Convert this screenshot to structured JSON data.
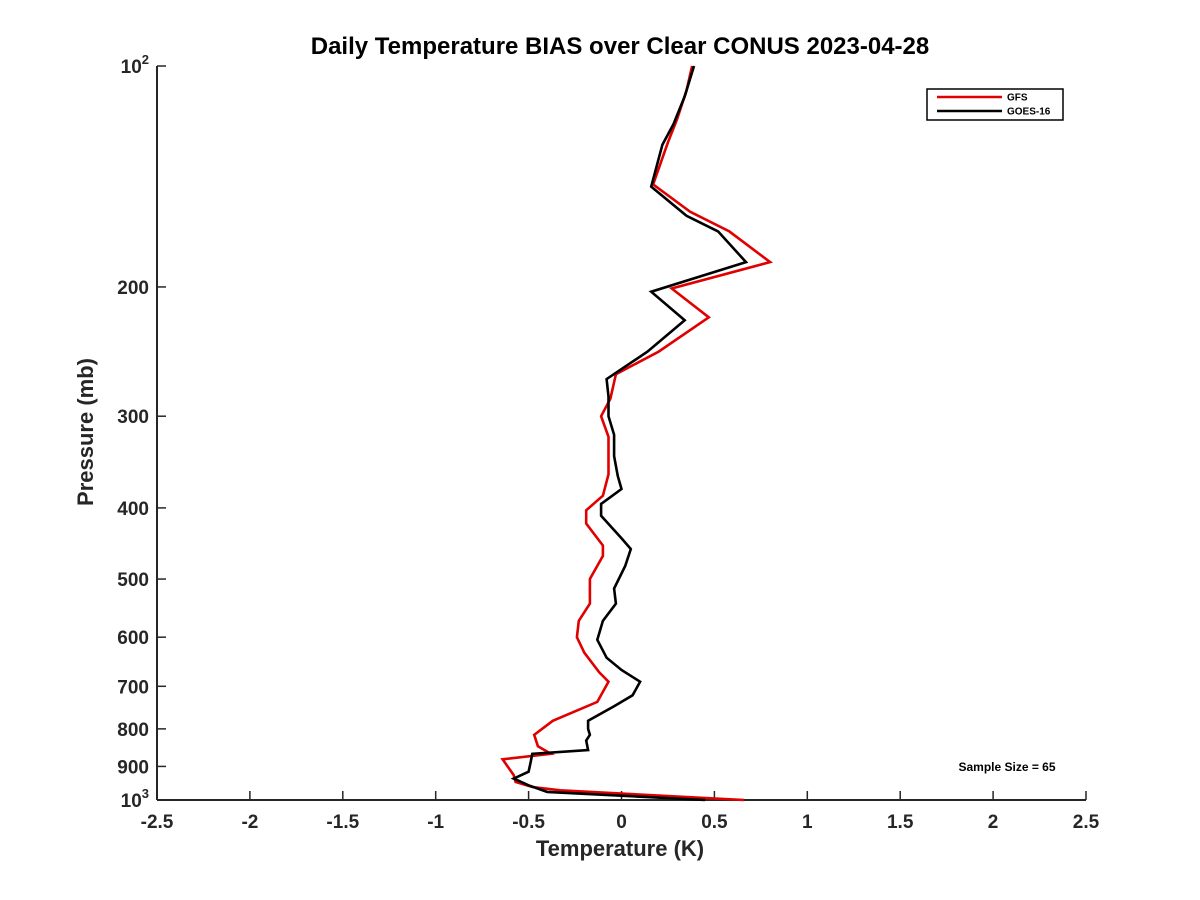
{
  "chart_data": {
    "type": "line",
    "title": "Daily Temperature BIAS over Clear CONUS 2023-04-28",
    "xlabel": "Temperature (K)",
    "ylabel": "Pressure (mb)",
    "xlim": [
      -2.5,
      2.5
    ],
    "ylim": [
      100,
      1000
    ],
    "y_scale": "log",
    "y_reversed": true,
    "grid": false,
    "legend_position": "top-right",
    "x_ticks": [
      "-2.5",
      "-2",
      "-1.5",
      "-1",
      "-0.5",
      "0",
      "0.5",
      "1",
      "1.5",
      "2",
      "2.5"
    ],
    "x_tick_values": [
      -2.5,
      -2,
      -1.5,
      -1,
      -0.5,
      0,
      0.5,
      1,
      1.5,
      2,
      2.5
    ],
    "y_ticks": [
      {
        "value": 100,
        "base": "10",
        "exp": "2"
      },
      {
        "value": 200,
        "label": "200"
      },
      {
        "value": 300,
        "label": "300"
      },
      {
        "value": 400,
        "label": "400"
      },
      {
        "value": 500,
        "label": "500"
      },
      {
        "value": 600,
        "label": "600"
      },
      {
        "value": 700,
        "label": "700"
      },
      {
        "value": 800,
        "label": "800"
      },
      {
        "value": 900,
        "label": "900"
      },
      {
        "value": 1000,
        "base": "10",
        "exp": "3"
      }
    ],
    "annotation": "Sample Size = 65",
    "series": [
      {
        "name": "GFS",
        "color": "#e00000",
        "points": [
          [
            0.38,
            100
          ],
          [
            0.35,
            108
          ],
          [
            0.3,
            118
          ],
          [
            0.25,
            127
          ],
          [
            0.17,
            145
          ],
          [
            0.37,
            158
          ],
          [
            0.58,
            168
          ],
          [
            0.8,
            185
          ],
          [
            0.27,
            201
          ],
          [
            0.47,
            220
          ],
          [
            0.2,
            245
          ],
          [
            -0.03,
            263
          ],
          [
            -0.06,
            284
          ],
          [
            -0.11,
            300
          ],
          [
            -0.07,
            320
          ],
          [
            -0.07,
            340
          ],
          [
            -0.07,
            360
          ],
          [
            -0.1,
            385
          ],
          [
            -0.19,
            403
          ],
          [
            -0.19,
            420
          ],
          [
            -0.1,
            450
          ],
          [
            -0.1,
            465
          ],
          [
            -0.17,
            500
          ],
          [
            -0.17,
            540
          ],
          [
            -0.23,
            570
          ],
          [
            -0.24,
            600
          ],
          [
            -0.2,
            630
          ],
          [
            -0.12,
            670
          ],
          [
            -0.07,
            690
          ],
          [
            -0.13,
            735
          ],
          [
            -0.37,
            780
          ],
          [
            -0.47,
            815
          ],
          [
            -0.45,
            845
          ],
          [
            -0.38,
            865
          ],
          [
            -0.64,
            880
          ],
          [
            -0.58,
            925
          ],
          [
            -0.57,
            945
          ],
          [
            -0.48,
            960
          ],
          [
            -0.33,
            970
          ],
          [
            0.0,
            980
          ],
          [
            0.66,
            1000
          ]
        ]
      },
      {
        "name": "GOES-16",
        "color": "#000000",
        "points": [
          [
            0.39,
            100
          ],
          [
            0.34,
            110
          ],
          [
            0.28,
            120
          ],
          [
            0.22,
            128
          ],
          [
            0.16,
            146
          ],
          [
            0.35,
            160
          ],
          [
            0.52,
            168
          ],
          [
            0.67,
            185
          ],
          [
            0.16,
            203
          ],
          [
            0.34,
            222
          ],
          [
            0.14,
            245
          ],
          [
            -0.08,
            267
          ],
          [
            -0.07,
            282
          ],
          [
            -0.07,
            300
          ],
          [
            -0.04,
            318
          ],
          [
            -0.04,
            340
          ],
          [
            -0.02,
            362
          ],
          [
            0.0,
            377
          ],
          [
            -0.11,
            395
          ],
          [
            -0.11,
            410
          ],
          [
            0.0,
            440
          ],
          [
            0.05,
            455
          ],
          [
            0.02,
            480
          ],
          [
            -0.04,
            515
          ],
          [
            -0.03,
            540
          ],
          [
            -0.1,
            570
          ],
          [
            -0.13,
            605
          ],
          [
            -0.08,
            640
          ],
          [
            0.0,
            665
          ],
          [
            0.1,
            690
          ],
          [
            0.06,
            720
          ],
          [
            -0.04,
            745
          ],
          [
            -0.18,
            780
          ],
          [
            -0.18,
            800
          ],
          [
            -0.17,
            815
          ],
          [
            -0.19,
            830
          ],
          [
            -0.18,
            855
          ],
          [
            -0.48,
            865
          ],
          [
            -0.49,
            890
          ],
          [
            -0.5,
            915
          ],
          [
            -0.58,
            935
          ],
          [
            -0.5,
            955
          ],
          [
            -0.4,
            975
          ],
          [
            0.45,
            1000
          ]
        ]
      }
    ]
  }
}
